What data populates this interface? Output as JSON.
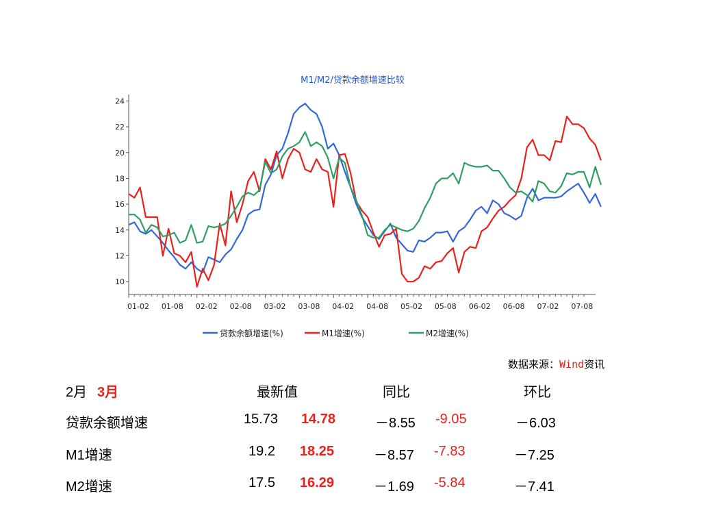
{
  "chart_data": {
    "type": "line",
    "title": "M1/M2/贷款余额增速比较",
    "ylim": [
      9,
      24.5
    ],
    "yticks": [
      10,
      12,
      14,
      16,
      18,
      20,
      22,
      24
    ],
    "xtick_labels": [
      "01-02",
      "01-08",
      "02-02",
      "02-08",
      "03-02",
      "03-08",
      "04-02",
      "04-08",
      "05-02",
      "05-08",
      "06-02",
      "06-08",
      "07-02",
      "07-08"
    ],
    "xlim": [
      0,
      80
    ],
    "grid": false,
    "legend": "bottom",
    "series": [
      {
        "name": "贷款余额增速(%)",
        "color": "#3366dd",
        "points": [
          [
            0,
            14.4
          ],
          [
            1,
            14.6
          ],
          [
            2,
            13.9
          ],
          [
            3,
            13.7
          ],
          [
            4,
            14.0
          ],
          [
            5,
            13.5
          ],
          [
            6,
            13.0
          ],
          [
            7,
            12.4
          ],
          [
            8,
            11.9
          ],
          [
            9,
            11.3
          ],
          [
            10,
            11.0
          ],
          [
            11,
            11.5
          ],
          [
            12,
            11.0
          ],
          [
            13,
            10.7
          ],
          [
            14,
            11.9
          ],
          [
            15,
            11.7
          ],
          [
            16,
            11.5
          ],
          [
            17,
            12.1
          ],
          [
            18,
            12.5
          ],
          [
            19,
            13.3
          ],
          [
            20,
            14.0
          ],
          [
            21,
            15.2
          ],
          [
            22,
            15.5
          ],
          [
            23,
            15.6
          ],
          [
            24,
            17.5
          ],
          [
            25,
            18.3
          ],
          [
            26,
            19.8
          ],
          [
            27,
            20.3
          ],
          [
            28,
            21.5
          ],
          [
            29,
            23.0
          ],
          [
            30,
            23.5
          ],
          [
            31,
            23.8
          ],
          [
            32,
            23.3
          ],
          [
            33,
            23.0
          ],
          [
            34,
            22.0
          ],
          [
            35,
            20.3
          ],
          [
            36,
            20.7
          ],
          [
            37,
            19.8
          ],
          [
            38,
            18.5
          ],
          [
            39,
            17.3
          ],
          [
            40,
            16.0
          ],
          [
            41,
            15.0
          ],
          [
            42,
            14.3
          ],
          [
            43,
            13.6
          ],
          [
            44,
            13.3
          ],
          [
            45,
            13.9
          ],
          [
            46,
            14.5
          ],
          [
            47,
            13.4
          ],
          [
            48,
            12.9
          ],
          [
            49,
            12.4
          ],
          [
            50,
            12.3
          ],
          [
            51,
            13.2
          ],
          [
            52,
            13.1
          ],
          [
            53,
            13.4
          ],
          [
            54,
            13.8
          ],
          [
            55,
            13.8
          ],
          [
            56,
            13.9
          ],
          [
            57,
            13.1
          ],
          [
            58,
            13.9
          ],
          [
            59,
            14.2
          ],
          [
            60,
            14.8
          ],
          [
            61,
            15.5
          ],
          [
            62,
            15.8
          ],
          [
            63,
            15.3
          ],
          [
            64,
            16.3
          ],
          [
            65,
            16.0
          ],
          [
            66,
            15.3
          ],
          [
            67,
            15.1
          ],
          [
            68,
            14.8
          ],
          [
            69,
            15.1
          ],
          [
            70,
            16.5
          ],
          [
            71,
            17.2
          ],
          [
            72,
            16.3
          ],
          [
            73,
            16.5
          ],
          [
            74,
            16.5
          ],
          [
            75,
            16.5
          ],
          [
            76,
            16.6
          ],
          [
            77,
            17.0
          ],
          [
            78,
            17.3
          ],
          [
            79,
            17.6
          ],
          [
            80,
            16.9
          ],
          [
            81,
            16.1
          ],
          [
            82,
            16.8
          ],
          [
            83,
            15.8
          ]
        ]
      },
      {
        "name": "M1增速(%)",
        "color": "#e8211d",
        "points": [
          [
            0,
            16.8
          ],
          [
            1,
            16.5
          ],
          [
            2,
            17.3
          ],
          [
            3,
            15.0
          ],
          [
            4,
            15.0
          ],
          [
            5,
            15.0
          ],
          [
            6,
            12.0
          ],
          [
            7,
            14.1
          ],
          [
            8,
            12.2
          ],
          [
            9,
            12.0
          ],
          [
            10,
            11.5
          ],
          [
            11,
            12.3
          ],
          [
            12,
            9.6
          ],
          [
            13,
            11.0
          ],
          [
            14,
            10.1
          ],
          [
            15,
            11.3
          ],
          [
            16,
            14.5
          ],
          [
            17,
            12.8
          ],
          [
            18,
            17.0
          ],
          [
            19,
            14.6
          ],
          [
            20,
            16.0
          ],
          [
            21,
            17.8
          ],
          [
            22,
            18.5
          ],
          [
            23,
            17.0
          ],
          [
            24,
            19.5
          ],
          [
            25,
            18.7
          ],
          [
            26,
            20.1
          ],
          [
            27,
            18.0
          ],
          [
            28,
            19.5
          ],
          [
            29,
            20.3
          ],
          [
            30,
            20.0
          ],
          [
            31,
            18.7
          ],
          [
            32,
            18.5
          ],
          [
            33,
            19.5
          ],
          [
            34,
            18.7
          ],
          [
            35,
            18.5
          ],
          [
            36,
            15.8
          ],
          [
            37,
            19.8
          ],
          [
            38,
            19.9
          ],
          [
            39,
            18.4
          ],
          [
            40,
            16.2
          ],
          [
            41,
            15.5
          ],
          [
            42,
            15.0
          ],
          [
            43,
            13.8
          ],
          [
            44,
            12.7
          ],
          [
            45,
            13.6
          ],
          [
            46,
            13.7
          ],
          [
            47,
            14.1
          ],
          [
            48,
            10.6
          ],
          [
            49,
            10.0
          ],
          [
            50,
            10.0
          ],
          [
            51,
            10.3
          ],
          [
            52,
            11.2
          ],
          [
            53,
            11.0
          ],
          [
            54,
            11.5
          ],
          [
            55,
            11.6
          ],
          [
            56,
            12.2
          ],
          [
            57,
            12.6
          ],
          [
            58,
            10.7
          ],
          [
            59,
            12.3
          ],
          [
            60,
            12.7
          ],
          [
            61,
            12.6
          ],
          [
            62,
            13.9
          ],
          [
            63,
            14.2
          ],
          [
            64,
            14.9
          ],
          [
            65,
            15.5
          ],
          [
            66,
            15.8
          ],
          [
            67,
            16.3
          ],
          [
            68,
            16.7
          ],
          [
            69,
            18.0
          ],
          [
            70,
            20.4
          ],
          [
            71,
            21.0
          ],
          [
            72,
            19.8
          ],
          [
            73,
            19.8
          ],
          [
            74,
            19.4
          ],
          [
            75,
            20.9
          ],
          [
            76,
            20.8
          ],
          [
            77,
            22.8
          ],
          [
            78,
            22.2
          ],
          [
            79,
            22.2
          ],
          [
            80,
            21.9
          ],
          [
            81,
            21.1
          ],
          [
            82,
            20.6
          ],
          [
            83,
            19.4
          ]
        ]
      },
      {
        "name": "M2增速(%)",
        "color": "#2e9e63",
        "points": [
          [
            0,
            15.2
          ],
          [
            1,
            15.2
          ],
          [
            2,
            14.8
          ],
          [
            3,
            13.8
          ],
          [
            4,
            14.4
          ],
          [
            5,
            14.2
          ],
          [
            6,
            13.5
          ],
          [
            7,
            13.6
          ],
          [
            8,
            13.8
          ],
          [
            9,
            13.0
          ],
          [
            10,
            13.2
          ],
          [
            11,
            14.4
          ],
          [
            12,
            13.0
          ],
          [
            13,
            13.1
          ],
          [
            14,
            14.3
          ],
          [
            15,
            14.2
          ],
          [
            16,
            14.3
          ],
          [
            17,
            14.5
          ],
          [
            18,
            15.1
          ],
          [
            19,
            15.8
          ],
          [
            20,
            16.6
          ],
          [
            21,
            16.9
          ],
          [
            22,
            16.7
          ],
          [
            23,
            17.1
          ],
          [
            24,
            19.3
          ],
          [
            25,
            18.4
          ],
          [
            26,
            18.7
          ],
          [
            27,
            19.7
          ],
          [
            28,
            20.3
          ],
          [
            29,
            20.5
          ],
          [
            30,
            20.8
          ],
          [
            31,
            21.6
          ],
          [
            32,
            20.5
          ],
          [
            33,
            20.8
          ],
          [
            34,
            20.5
          ],
          [
            35,
            19.6
          ],
          [
            36,
            18.0
          ],
          [
            37,
            19.6
          ],
          [
            38,
            19.2
          ],
          [
            39,
            17.3
          ],
          [
            40,
            16.3
          ],
          [
            41,
            15.1
          ],
          [
            42,
            13.6
          ],
          [
            43,
            13.4
          ],
          [
            44,
            13.4
          ],
          [
            45,
            14.0
          ],
          [
            46,
            14.4
          ],
          [
            47,
            14.2
          ],
          [
            48,
            14.0
          ],
          [
            49,
            13.9
          ],
          [
            50,
            14.1
          ],
          [
            51,
            14.7
          ],
          [
            52,
            15.7
          ],
          [
            53,
            16.5
          ],
          [
            54,
            17.6
          ],
          [
            55,
            18.0
          ],
          [
            56,
            18.0
          ],
          [
            57,
            18.4
          ],
          [
            58,
            17.6
          ],
          [
            59,
            19.2
          ],
          [
            60,
            19.0
          ],
          [
            61,
            18.9
          ],
          [
            62,
            18.9
          ],
          [
            63,
            19.0
          ],
          [
            64,
            18.6
          ],
          [
            65,
            18.6
          ],
          [
            66,
            18.0
          ],
          [
            67,
            17.3
          ],
          [
            68,
            16.9
          ],
          [
            69,
            17.0
          ],
          [
            70,
            16.7
          ],
          [
            71,
            16.2
          ],
          [
            72,
            17.8
          ],
          [
            73,
            17.6
          ],
          [
            74,
            17.0
          ],
          [
            75,
            16.9
          ],
          [
            76,
            17.4
          ],
          [
            77,
            18.4
          ],
          [
            78,
            18.3
          ],
          [
            79,
            18.5
          ],
          [
            80,
            18.5
          ],
          [
            81,
            17.3
          ],
          [
            82,
            18.9
          ],
          [
            83,
            17.5
          ]
        ]
      }
    ]
  },
  "source": {
    "prefix": "数据来源：",
    "brand": "Wind",
    "suffix": "资讯"
  },
  "table": {
    "period_prev": "2月",
    "period_curr": "3月",
    "headers": {
      "latest": "最新值",
      "yoy": "同比",
      "mom": "环比"
    },
    "rows": [
      {
        "label": "贷款余额增速",
        "prev": "15.73",
        "curr": "14.78",
        "yoy_prev": "－8.55",
        "yoy_curr": "-9.05",
        "mom": "－6.03"
      },
      {
        "label": "M1增速",
        "prev": "19.2",
        "curr": "18.25",
        "yoy_prev": "－8.57",
        "yoy_curr": "-7.83",
        "mom": "－7.25"
      },
      {
        "label": "M2增速",
        "prev": "17.5",
        "curr": "16.29",
        "yoy_prev": "－1.69",
        "yoy_curr": "-5.84",
        "mom": "－7.41"
      }
    ]
  }
}
